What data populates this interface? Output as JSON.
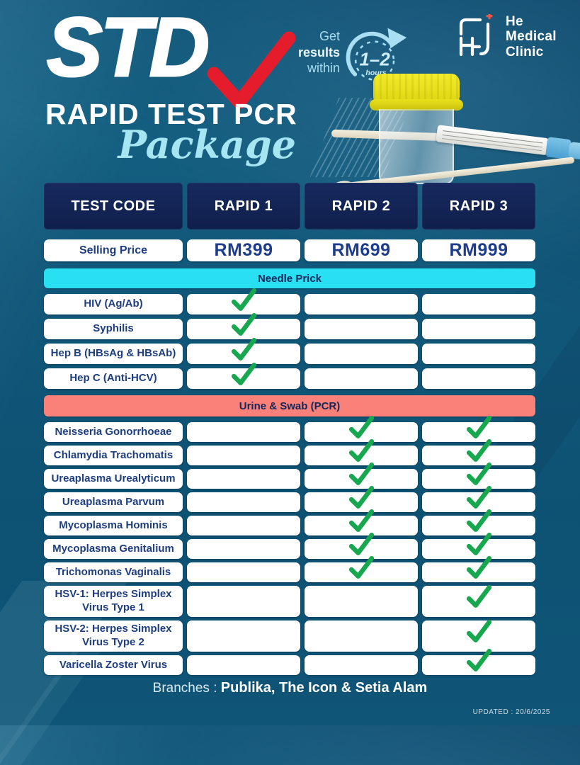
{
  "header": {
    "title": "STD",
    "subtitle": "RAPID TEST PCR",
    "script": "Package",
    "badge": {
      "line1": "Get",
      "line2": "results",
      "line3": "within",
      "clock_big": "1–2",
      "clock_small": "hours"
    },
    "logo": {
      "line1": "He",
      "line2": "Medical",
      "line3": "Clinic"
    }
  },
  "table": {
    "columns": [
      "TEST CODE",
      "RAPID 1",
      "RAPID 2",
      "RAPID 3"
    ],
    "price_row": {
      "label": "Selling Price",
      "values": [
        "RM399",
        "RM699",
        "RM999"
      ]
    },
    "sections": [
      {
        "title": "Needle Prick",
        "color": "#29dff2",
        "rows": [
          {
            "label": "HIV (Ag/Ab)",
            "checks": [
              true,
              false,
              false
            ]
          },
          {
            "label": "Syphilis",
            "checks": [
              true,
              false,
              false
            ]
          },
          {
            "label": "Hep B (HBsAg & HBsAb)",
            "checks": [
              true,
              false,
              false
            ]
          },
          {
            "label": "Hep C (Anti-HCV)",
            "checks": [
              true,
              false,
              false
            ]
          }
        ]
      },
      {
        "title": "Urine & Swab (PCR)",
        "color": "#f9817a",
        "rows": [
          {
            "label": "Neisseria Gonorrhoeae",
            "checks": [
              false,
              true,
              true
            ]
          },
          {
            "label": "Chlamydia Trachomatis",
            "checks": [
              false,
              true,
              true
            ]
          },
          {
            "label": "Ureaplasma Urealyticum",
            "checks": [
              false,
              true,
              true
            ]
          },
          {
            "label": "Ureaplasma Parvum",
            "checks": [
              false,
              true,
              true
            ]
          },
          {
            "label": "Mycoplasma Hominis",
            "checks": [
              false,
              true,
              true
            ]
          },
          {
            "label": "Mycoplasma Genitalium",
            "checks": [
              false,
              true,
              true
            ]
          },
          {
            "label": "Trichomonas Vaginalis",
            "checks": [
              false,
              true,
              true
            ]
          },
          {
            "label": "HSV-1: Herpes Simplex Virus Type 1",
            "checks": [
              false,
              false,
              true
            ],
            "tall": true
          },
          {
            "label": "HSV-2: Herpes Simplex Virus Type 2",
            "checks": [
              false,
              false,
              true
            ],
            "tall": true
          },
          {
            "label": "Varicella Zoster Virus",
            "checks": [
              false,
              false,
              true
            ]
          }
        ]
      }
    ]
  },
  "footer": {
    "branches_label": "Branches :",
    "branches_value": "Publika, The Icon & Setia Alam",
    "updated": "UPDATED : 20/6/2025"
  },
  "colors": {
    "background": "#11587a",
    "header_navy": "#13275a",
    "needle_prick_bar": "#29dff2",
    "urine_swab_bar": "#f9817a",
    "check_green": "#17a74f",
    "title_check_red": "#e51c2b",
    "text_navy": "#1e3e80",
    "script_cyan": "#a5e6f2",
    "cap_yellow": "#e8e012"
  }
}
